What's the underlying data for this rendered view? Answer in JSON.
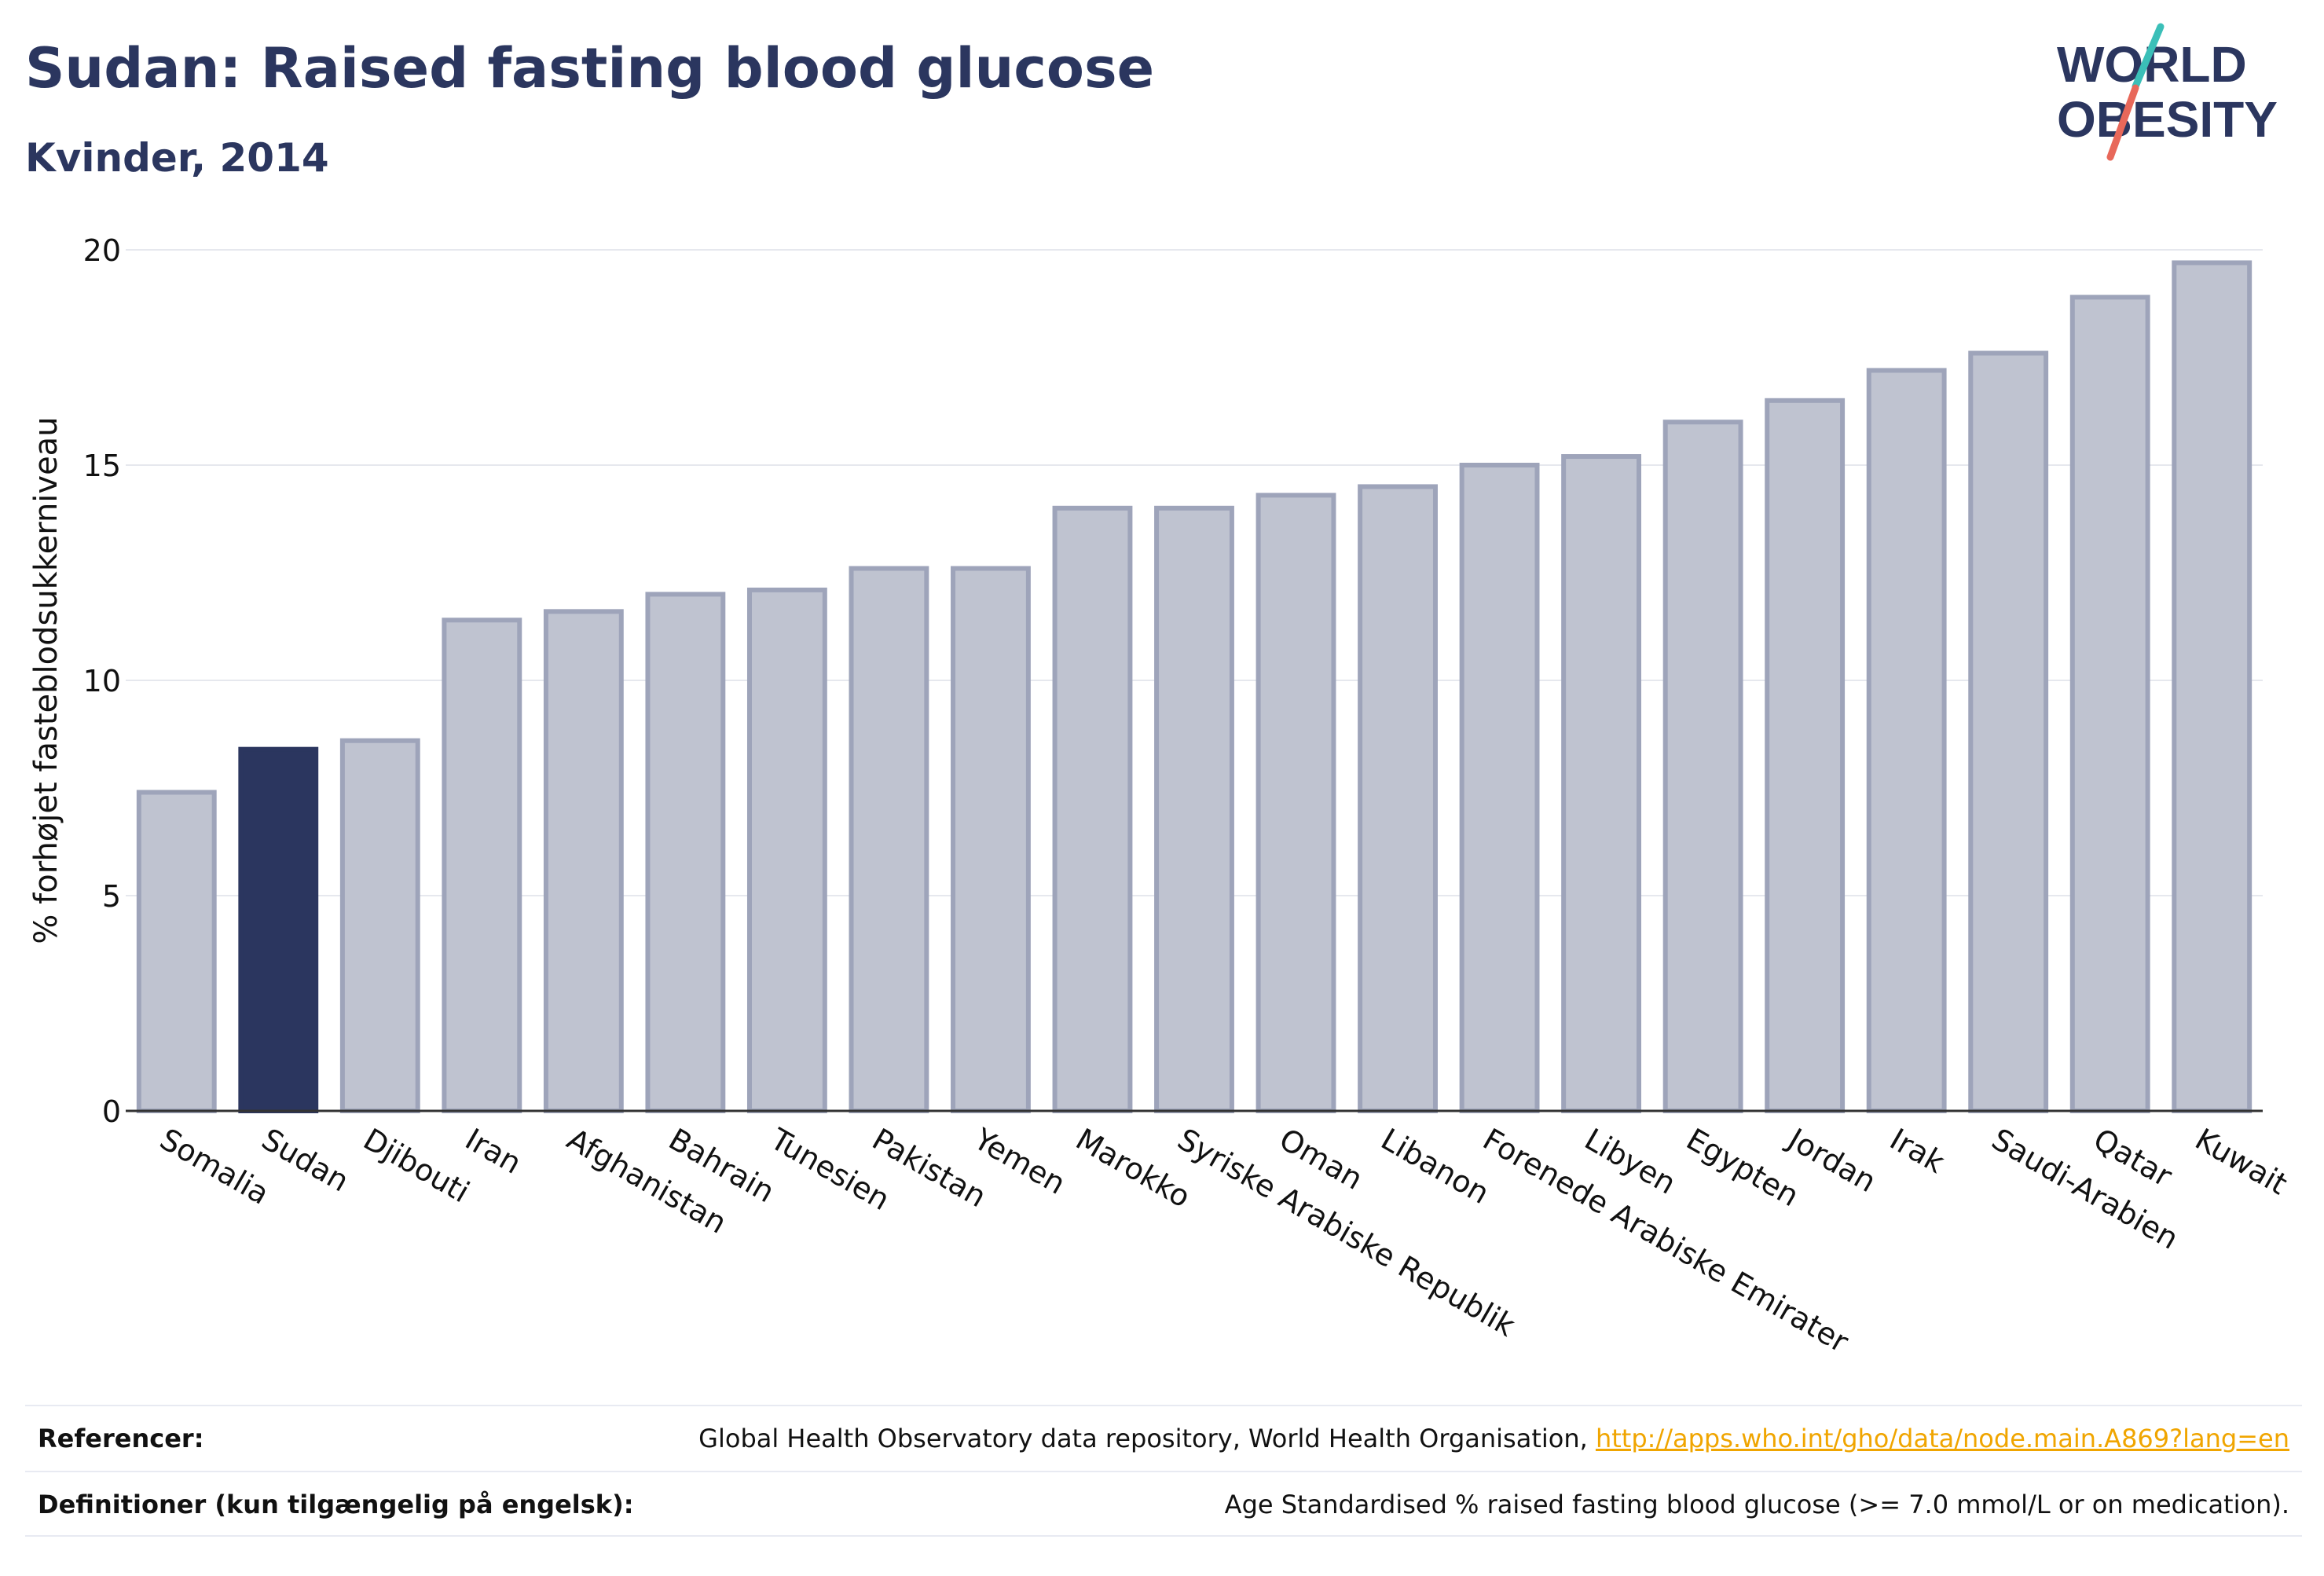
{
  "header": {
    "title": "Sudan: Raised fasting blood glucose",
    "subtitle": "Kvinder, 2014"
  },
  "logo": {
    "line1": "WORLD",
    "line2": "OBESITY",
    "colors": {
      "text": "#2b365f",
      "slash_top": "#3bbfb8",
      "slash_bottom": "#e8685a"
    }
  },
  "chart_data": {
    "type": "bar",
    "ylabel": "% forhøjet fasteblodsukkerniveau",
    "xlabel": "",
    "ylim": [
      0,
      20
    ],
    "yticks": [
      0,
      5,
      10,
      15,
      20
    ],
    "grid": true,
    "categories": [
      "Somalia",
      "Sudan",
      "Djibouti",
      "Iran",
      "Afghanistan",
      "Bahrain",
      "Tunesien",
      "Pakistan",
      "Yemen",
      "Marokko",
      "Syriske Arabiske Republik",
      "Oman",
      "Libanon",
      "Forenede Arabiske Emirater",
      "Libyen",
      "Egypten",
      "Jordan",
      "Irak",
      "Saudi-Arabien",
      "Qatar",
      "Kuwait"
    ],
    "values": [
      7.4,
      8.4,
      8.6,
      11.4,
      11.6,
      12.0,
      12.1,
      12.6,
      12.6,
      14.0,
      14.0,
      14.3,
      14.5,
      15.0,
      15.2,
      16.0,
      16.5,
      17.2,
      17.6,
      18.9,
      19.7
    ],
    "highlight": "Sudan",
    "colors": {
      "bar": "#bfc3d0",
      "bar_border": "#9ea4ba",
      "highlight": "#2b365f",
      "grid": "#e6e8ee",
      "axis": "#333333"
    }
  },
  "footer": {
    "references_label": "Referencer:",
    "references_text": "Global Health Observatory data repository, World Health Organisation, ",
    "references_link": "http://apps.who.int/gho/data/node.main.A869?lang=en",
    "definitions_label": "Definitioner (kun tilgængelig på engelsk):",
    "definitions_text": "Age Standardised % raised fasting blood glucose (>= 7.0 mmol/L or on medication)."
  }
}
